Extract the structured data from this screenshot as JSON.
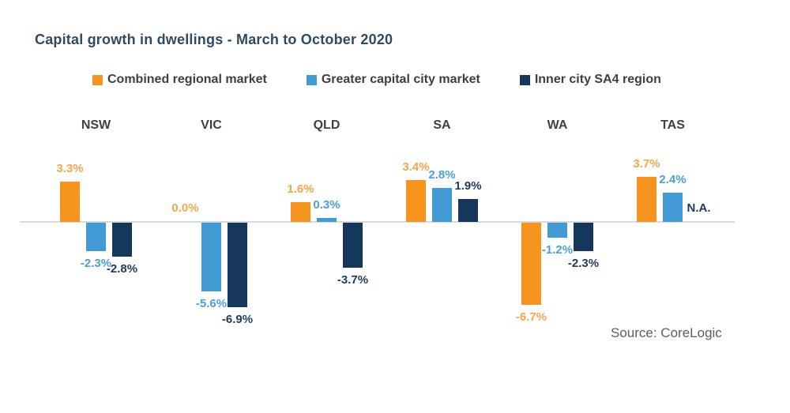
{
  "title": "Capital growth in dwellings - March to October 2020",
  "source": "Source: CoreLogic",
  "legend": [
    {
      "label": "Combined regional market",
      "color": "#F6941E"
    },
    {
      "label": "Greater capital city market",
      "color": "#429BD5"
    },
    {
      "label": "Inner city SA4 region",
      "color": "#16375C"
    }
  ],
  "chart_data": {
    "type": "bar",
    "title": "Capital growth in dwellings - March to October 2020",
    "unit": "%",
    "categories": [
      "NSW",
      "VIC",
      "QLD",
      "SA",
      "WA",
      "TAS"
    ],
    "series": [
      {
        "name": "Combined regional market",
        "color": "#F6941E",
        "label_color": "#F8A64B",
        "values": [
          3.3,
          0.0,
          1.6,
          3.4,
          -6.7,
          3.7
        ]
      },
      {
        "name": "Greater capital city market",
        "color": "#429BD5",
        "label_color": "#4C9FD9",
        "values": [
          -2.3,
          -5.6,
          0.3,
          2.8,
          -1.2,
          2.4
        ]
      },
      {
        "name": "Inner city SA4 region",
        "color": "#16375C",
        "label_color": "#1F3A5F",
        "values": [
          -2.8,
          -6.9,
          -3.7,
          1.9,
          -2.3,
          null
        ]
      }
    ],
    "value_labels": [
      [
        "3.3%",
        "-2.3%",
        "-2.8%"
      ],
      [
        "0.0%",
        "-5.6%",
        "-6.9%"
      ],
      [
        "1.6%",
        "0.3%",
        "-3.7%"
      ],
      [
        "3.4%",
        "2.8%",
        "1.9%"
      ],
      [
        "-6.7%",
        "-1.2%",
        "-2.3%"
      ],
      [
        "3.7%",
        "2.4%",
        "N.A."
      ]
    ],
    "missing_label": "N.A.",
    "baseline": 0,
    "ylim": [
      -7.5,
      4.5
    ],
    "grid": false,
    "legend_position": "top"
  }
}
